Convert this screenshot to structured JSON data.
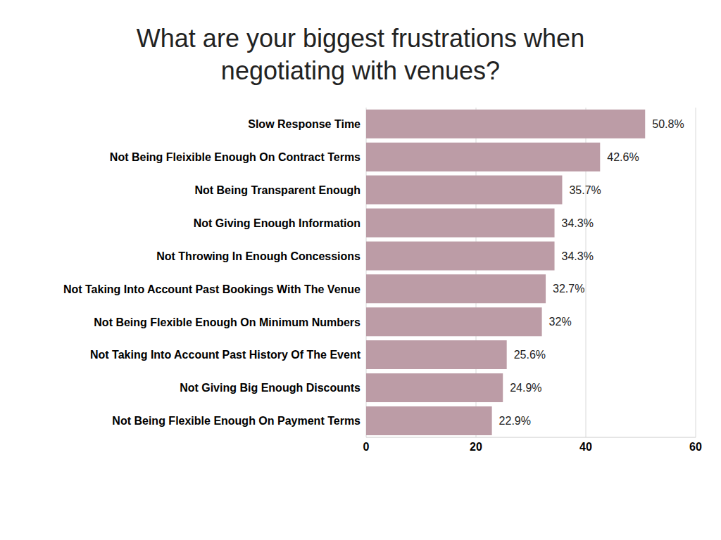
{
  "chart_data": {
    "type": "bar",
    "title": "What are your biggest frustrations when negotiating with venues?",
    "orientation": "horizontal",
    "categories": [
      "Slow Response Time",
      "Not Being Fleixible Enough On Contract Terms",
      "Not Being Transparent Enough",
      "Not Giving Enough Information",
      "Not Throwing In Enough Concessions",
      "Not Taking Into Account Past Bookings With The Venue",
      "Not Being Flexible Enough On Minimum Numbers",
      "Not Taking Into Account Past History Of The Event",
      "Not Giving Big Enough Discounts",
      "Not Being Flexible Enough On Payment Terms"
    ],
    "values": [
      50.8,
      42.6,
      35.7,
      34.3,
      34.3,
      32.7,
      32,
      25.6,
      24.9,
      22.9
    ],
    "value_labels": [
      "50.8%",
      "42.6%",
      "35.7%",
      "34.3%",
      "34.3%",
      "32.7%",
      "32%",
      "25.6%",
      "24.9%",
      "22.9%"
    ],
    "data_labels": true,
    "color": "#bc9ca6",
    "xlim": [
      0,
      60
    ],
    "xticks": [
      0,
      20,
      40,
      60
    ],
    "grid": true
  }
}
